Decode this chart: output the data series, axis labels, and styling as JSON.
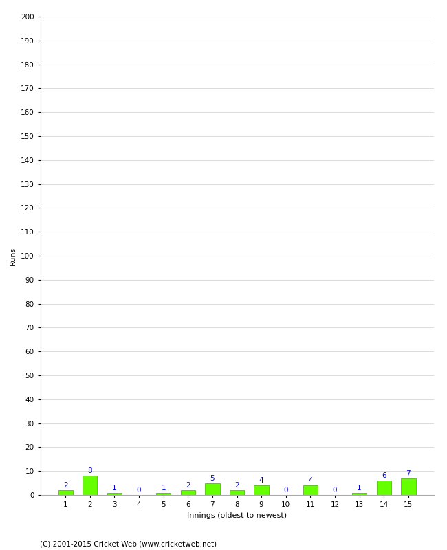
{
  "innings": [
    1,
    2,
    3,
    4,
    5,
    6,
    7,
    8,
    9,
    10,
    11,
    12,
    13,
    14,
    15
  ],
  "runs": [
    2,
    8,
    1,
    0,
    1,
    2,
    5,
    2,
    4,
    0,
    4,
    0,
    1,
    6,
    7
  ],
  "bar_color": "#66ff00",
  "bar_edge_color": "#44aa00",
  "label_color": "#0000cc",
  "ylabel": "Runs",
  "xlabel": "Innings (oldest to newest)",
  "ylim": [
    0,
    200
  ],
  "yticks": [
    0,
    10,
    20,
    30,
    40,
    50,
    60,
    70,
    80,
    90,
    100,
    110,
    120,
    130,
    140,
    150,
    160,
    170,
    180,
    190,
    200
  ],
  "background_color": "#ffffff",
  "grid_color": "#cccccc",
  "footer": "(C) 2001-2015 Cricket Web (www.cricketweb.net)",
  "label_fontsize": 7.5,
  "axis_label_fontsize": 8,
  "tick_fontsize": 7.5,
  "footer_fontsize": 7.5
}
